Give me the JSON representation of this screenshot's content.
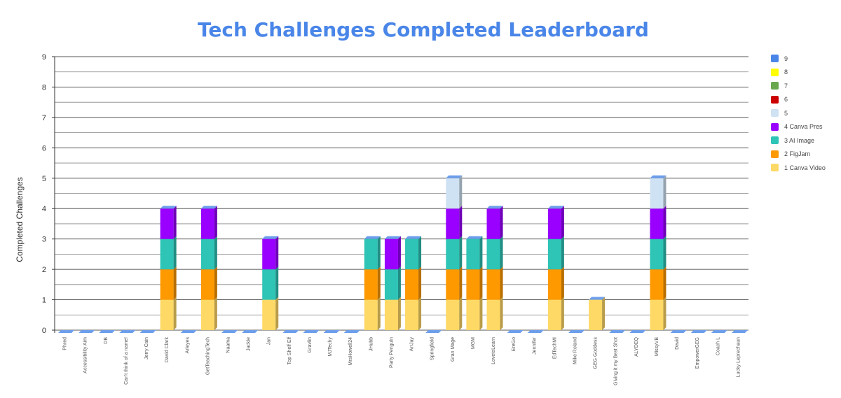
{
  "title": "Tech Challenges Completed Leaderboard",
  "chart_data": {
    "type": "bar",
    "stacked": true,
    "three_d": true,
    "title": "Tech Challenges Completed Leaderboard",
    "xlabel": "",
    "ylabel": "Completed Challenges",
    "ylim": [
      0,
      9
    ],
    "yticks": [
      0,
      1,
      2,
      3,
      4,
      5,
      6,
      7,
      8,
      9
    ],
    "grid": true,
    "legend_position": "right",
    "categories": [
      "Phred",
      "Accessibility Aim",
      "DB",
      "Can't think of a name!",
      "Jerry Cain",
      "David Clark",
      "Arleyes",
      "GetTeachingTech",
      "Naama",
      "Jackie",
      "Jan",
      "Top Shelf Elf",
      "Gravlin",
      "MJTechy",
      "MrsHowell24",
      "JHubb",
      "Party Penguin",
      "ArrJay",
      "Springfield",
      "Gran Mage",
      "MGM",
      "LovetoLearn",
      "EreGo",
      "Jennifer",
      "EdTechMI",
      "Mike Roland",
      "GEG Goddess",
      "Giving it my Best Shot",
      "ALYDEQ",
      "MissyVB",
      "David",
      "EmpowerGEG",
      "Coach L",
      "Lucky Leprechaun"
    ],
    "series": [
      {
        "name": "1 Canva Video",
        "color": "#ffd966",
        "values": [
          0,
          0,
          0,
          0,
          0,
          1,
          0,
          1,
          0,
          0,
          1,
          0,
          0,
          0,
          0,
          1,
          1,
          1,
          0,
          1,
          1,
          1,
          0,
          0,
          1,
          0,
          1,
          0,
          0,
          1,
          0,
          0,
          0,
          0
        ]
      },
      {
        "name": "2 FigJam",
        "color": "#ff9900",
        "values": [
          0,
          0,
          0,
          0,
          0,
          1,
          0,
          1,
          0,
          0,
          0,
          0,
          0,
          0,
          0,
          1,
          0,
          1,
          0,
          1,
          1,
          1,
          0,
          0,
          1,
          0,
          0,
          0,
          0,
          1,
          0,
          0,
          0,
          0
        ]
      },
      {
        "name": "3 AI Image",
        "color": "#2ec4b6",
        "values": [
          0,
          0,
          0,
          0,
          0,
          1,
          0,
          1,
          0,
          0,
          1,
          0,
          0,
          0,
          0,
          1,
          1,
          1,
          0,
          1,
          1,
          1,
          0,
          0,
          1,
          0,
          0,
          0,
          0,
          1,
          0,
          0,
          0,
          0
        ]
      },
      {
        "name": "4 Canva Pres",
        "color": "#9900ff",
        "values": [
          0,
          0,
          0,
          0,
          0,
          1,
          0,
          1,
          0,
          0,
          1,
          0,
          0,
          0,
          0,
          0,
          1,
          0,
          0,
          1,
          0,
          1,
          0,
          0,
          1,
          0,
          0,
          0,
          0,
          1,
          0,
          0,
          0,
          0
        ]
      },
      {
        "name": "5",
        "color": "#cfe2f3",
        "values": [
          0,
          0,
          0,
          0,
          0,
          0,
          0,
          0,
          0,
          0,
          0,
          0,
          0,
          0,
          0,
          0,
          0,
          0,
          0,
          1,
          0,
          0,
          0,
          0,
          0,
          0,
          0,
          0,
          0,
          1,
          0,
          0,
          0,
          0
        ]
      },
      {
        "name": "6",
        "color": "#cc0000",
        "values": [
          0,
          0,
          0,
          0,
          0,
          0,
          0,
          0,
          0,
          0,
          0,
          0,
          0,
          0,
          0,
          0,
          0,
          0,
          0,
          0,
          0,
          0,
          0,
          0,
          0,
          0,
          0,
          0,
          0,
          0,
          0,
          0,
          0,
          0
        ]
      },
      {
        "name": "7",
        "color": "#6aa84f",
        "values": [
          0,
          0,
          0,
          0,
          0,
          0,
          0,
          0,
          0,
          0,
          0,
          0,
          0,
          0,
          0,
          0,
          0,
          0,
          0,
          0,
          0,
          0,
          0,
          0,
          0,
          0,
          0,
          0,
          0,
          0,
          0,
          0,
          0,
          0
        ]
      },
      {
        "name": "8",
        "color": "#ffff00",
        "values": [
          0,
          0,
          0,
          0,
          0,
          0,
          0,
          0,
          0,
          0,
          0,
          0,
          0,
          0,
          0,
          0,
          0,
          0,
          0,
          0,
          0,
          0,
          0,
          0,
          0,
          0,
          0,
          0,
          0,
          0,
          0,
          0,
          0,
          0
        ]
      },
      {
        "name": "9",
        "color": "#4a86e8",
        "values": [
          0,
          0,
          0,
          0,
          0,
          0,
          0,
          0,
          0,
          0,
          0,
          0,
          0,
          0,
          0,
          0,
          0,
          0,
          0,
          0,
          0,
          0,
          0,
          0,
          0,
          0,
          0,
          0,
          0,
          0,
          0,
          0,
          0,
          0
        ]
      }
    ]
  }
}
